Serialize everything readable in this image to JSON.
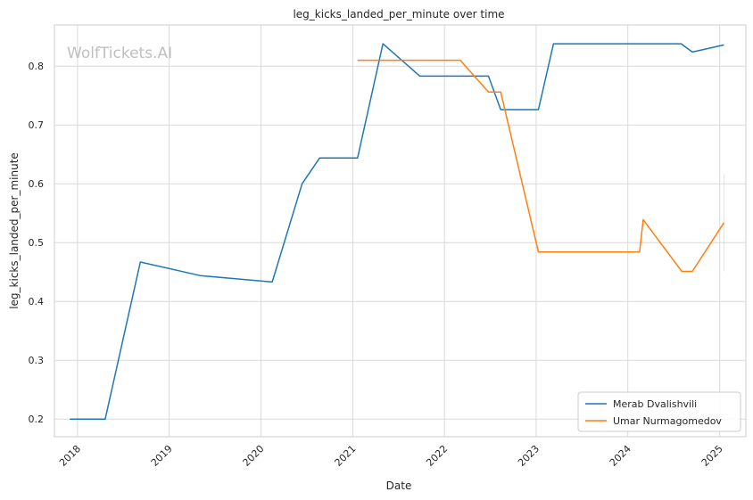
{
  "chart_data": {
    "type": "line",
    "title": "leg_kicks_landed_per_minute over time",
    "xlabel": "Date",
    "ylabel": "leg_kicks_landed_per_minute",
    "watermark": "WolfTickets.AI",
    "xlim": [
      "2017-10-01",
      "2025-04-15"
    ],
    "ylim": [
      0.17,
      0.87
    ],
    "x_ticks": [
      "2018",
      "2019",
      "2020",
      "2021",
      "2022",
      "2023",
      "2024",
      "2025"
    ],
    "x_tick_dates": [
      "2018-01-01",
      "2019-01-01",
      "2020-01-01",
      "2021-01-01",
      "2022-01-01",
      "2023-01-01",
      "2024-01-01",
      "2025-01-01"
    ],
    "y_ticks": [
      0.2,
      0.3,
      0.4,
      0.5,
      0.6,
      0.7,
      0.8
    ],
    "grid": true,
    "legend_position": "lower-right",
    "series": [
      {
        "name": "Merab Dvalishvili",
        "color": "#1f77b4",
        "points": [
          [
            "2017-12-01",
            0.2
          ],
          [
            "2018-04-21",
            0.2
          ],
          [
            "2018-09-08",
            0.467
          ],
          [
            "2019-05-04",
            0.444
          ],
          [
            "2020-02-15",
            0.433
          ],
          [
            "2020-06-13",
            0.6
          ],
          [
            "2020-08-22",
            0.644
          ],
          [
            "2021-01-20",
            0.644
          ],
          [
            "2021-05-01",
            0.838
          ],
          [
            "2021-09-25",
            0.783
          ],
          [
            "2022-06-25",
            0.783
          ],
          [
            "2022-08-13",
            0.726
          ],
          [
            "2023-01-10",
            0.726
          ],
          [
            "2023-03-11",
            0.838
          ],
          [
            "2024-07-31",
            0.838
          ],
          [
            "2024-09-14",
            0.824
          ],
          [
            "2025-01-18",
            0.836
          ]
        ]
      },
      {
        "name": "Umar Nurmagomedov",
        "color": "#ff7f0e",
        "points": [
          [
            "2021-01-20",
            0.81
          ],
          [
            "2022-03-05",
            0.81
          ],
          [
            "2022-06-25",
            0.756
          ],
          [
            "2022-08-13",
            0.756
          ],
          [
            "2023-01-10",
            0.484
          ],
          [
            "2024-02-17",
            0.484
          ],
          [
            "2024-03-02",
            0.539
          ],
          [
            "2024-08-03",
            0.451
          ],
          [
            "2024-09-14",
            0.451
          ],
          [
            "2025-01-18",
            0.534
          ]
        ],
        "error_band": [
          [
            "2025-01-18",
            0.451,
            0.617
          ]
        ]
      }
    ]
  }
}
